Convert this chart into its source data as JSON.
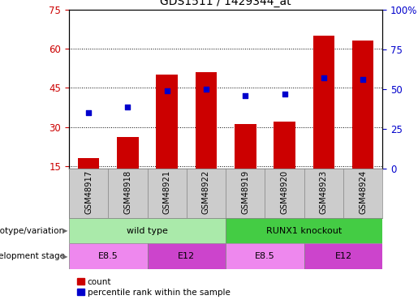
{
  "title": "GDS1511 / 1429344_at",
  "samples": [
    "GSM48917",
    "GSM48918",
    "GSM48921",
    "GSM48922",
    "GSM48919",
    "GSM48920",
    "GSM48923",
    "GSM48924"
  ],
  "counts": [
    18,
    26,
    50,
    51,
    31,
    32,
    65,
    63
  ],
  "percentiles": [
    35,
    39,
    49,
    50,
    46,
    47,
    57,
    56
  ],
  "ylim_left": [
    14,
    75
  ],
  "ylim_right": [
    0,
    100
  ],
  "yticks_left": [
    15,
    30,
    45,
    60,
    75
  ],
  "yticks_right": [
    0,
    25,
    50,
    75,
    100
  ],
  "bar_color": "#cc0000",
  "dot_color": "#0000cc",
  "plot_bg": "#ffffff",
  "genotype_groups": [
    {
      "label": "wild type",
      "start": 0,
      "end": 4,
      "color": "#aaeaaa"
    },
    {
      "label": "RUNX1 knockout",
      "start": 4,
      "end": 8,
      "color": "#44cc44"
    }
  ],
  "stage_groups": [
    {
      "label": "E8.5",
      "start": 0,
      "end": 2,
      "color": "#ee88ee"
    },
    {
      "label": "E12",
      "start": 2,
      "end": 4,
      "color": "#cc44cc"
    },
    {
      "label": "E8.5",
      "start": 4,
      "end": 6,
      "color": "#ee88ee"
    },
    {
      "label": "E12",
      "start": 6,
      "end": 8,
      "color": "#cc44cc"
    }
  ],
  "legend_count_label": "count",
  "legend_pct_label": "percentile rank within the sample",
  "left_axis_color": "#cc0000",
  "right_axis_color": "#0000cc",
  "label_row1": "genotype/variation",
  "label_row2": "development stage",
  "bar_width": 0.55,
  "sample_label_color": "#000000",
  "sample_bg_color": "#cccccc"
}
